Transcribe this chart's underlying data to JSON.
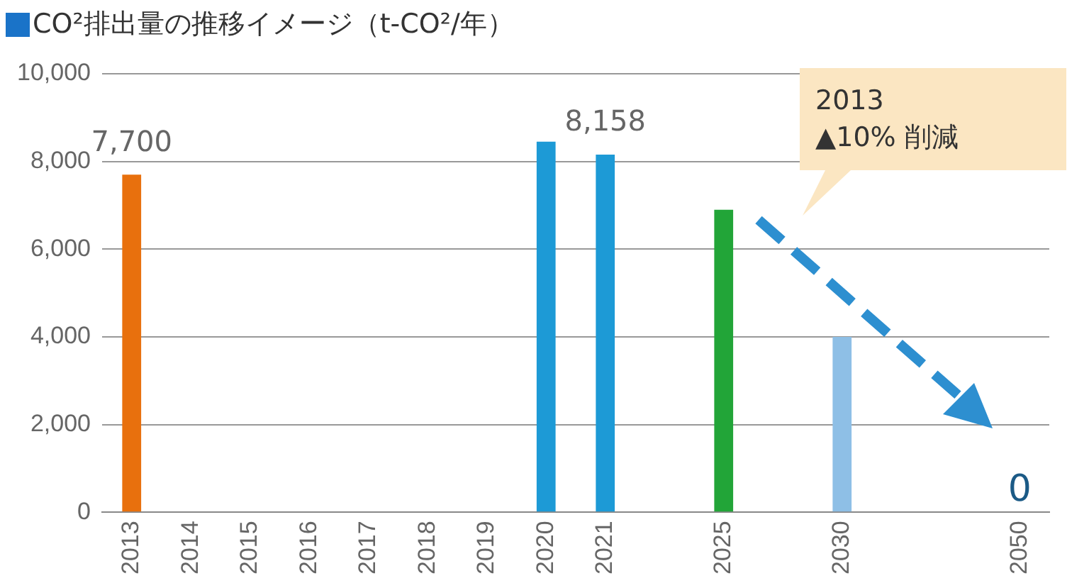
{
  "chart_data": {
    "type": "bar",
    "title": "CO²排出量の推移イメージ（t-CO²/年）",
    "categories": [
      "2013",
      "2014",
      "2015",
      "2016",
      "2017",
      "2018",
      "2019",
      "2020",
      "2021",
      null,
      "2025",
      null,
      "2030",
      null,
      null,
      "2050"
    ],
    "values": [
      7700,
      null,
      null,
      null,
      null,
      null,
      null,
      8450,
      8158,
      null,
      6900,
      null,
      4000,
      null,
      null,
      0
    ],
    "colors": [
      "#e8700d",
      "#1d9ad6",
      "#1d9ad6",
      "#1d9ad6",
      "#1d9ad6",
      "#1d9ad6",
      "#1d9ad6",
      "#1d9ad6",
      "#1d9ad6",
      "#1d9ad6",
      "#22a538",
      "#8ebfe6",
      "#8ebfe6",
      "#8ebfe6",
      "#8ebfe6",
      "#1b5a86"
    ],
    "value_labels": [
      "7,700",
      null,
      null,
      null,
      null,
      null,
      null,
      null,
      "8,158",
      null,
      null,
      null,
      null,
      null,
      null,
      "0"
    ],
    "ylim": [
      0,
      10000
    ],
    "yticks": [
      {
        "value": 0,
        "label": "0"
      },
      {
        "value": 2000,
        "label": "2,000"
      },
      {
        "value": 4000,
        "label": "4,000"
      },
      {
        "value": 6000,
        "label": "6,000"
      },
      {
        "value": 8000,
        "label": "8,000"
      },
      {
        "value": 10000,
        "label": "10,000"
      }
    ],
    "grid": "y",
    "legend": false,
    "annotations": [
      "2013\n▲10% 削減"
    ]
  }
}
